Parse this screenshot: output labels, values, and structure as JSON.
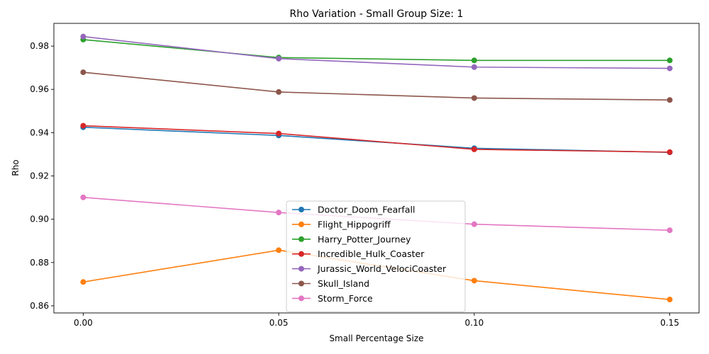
{
  "chart_data": {
    "type": "line",
    "title": "Rho Variation - Small Group Size: 1",
    "xlabel": "Small Percentage Size",
    "ylabel": "Rho",
    "x": [
      0.0,
      0.05,
      0.1,
      0.15
    ],
    "x_tick_labels": [
      "0.00",
      "0.05",
      "0.10",
      "0.15"
    ],
    "y_ticks": [
      0.86,
      0.88,
      0.9,
      0.92,
      0.94,
      0.96,
      0.98
    ],
    "y_tick_labels": [
      "0.86",
      "0.88",
      "0.90",
      "0.92",
      "0.94",
      "0.96",
      "0.98"
    ],
    "xlim": [
      -0.0075,
      0.1575
    ],
    "ylim": [
      0.8567,
      0.9905
    ],
    "grid": false,
    "legend_position": "lower center",
    "series": [
      {
        "name": "Doctor_Doom_Fearfall",
        "color": "#1f77b4",
        "values": [
          0.9425,
          0.9387,
          0.9328,
          0.9309
        ]
      },
      {
        "name": "Flight_Hippogriff",
        "color": "#ff7f0e",
        "values": [
          0.871,
          0.8857,
          0.8716,
          0.8629
        ]
      },
      {
        "name": "Harry_Potter_Journey",
        "color": "#2ca02c",
        "values": [
          0.983,
          0.9747,
          0.9734,
          0.9734
        ]
      },
      {
        "name": "Incredible_Hulk_Coaster",
        "color": "#d62728",
        "values": [
          0.9432,
          0.9396,
          0.9323,
          0.931
        ]
      },
      {
        "name": "Jurassic_World_VelociCoaster",
        "color": "#9467bd",
        "values": [
          0.9844,
          0.9742,
          0.9703,
          0.9697
        ]
      },
      {
        "name": "Skull_Island",
        "color": "#8c564b",
        "values": [
          0.9679,
          0.9588,
          0.956,
          0.9551
        ]
      },
      {
        "name": "Storm_Force",
        "color": "#e377c2",
        "values": [
          0.9101,
          0.9031,
          0.8977,
          0.8949
        ]
      }
    ]
  }
}
